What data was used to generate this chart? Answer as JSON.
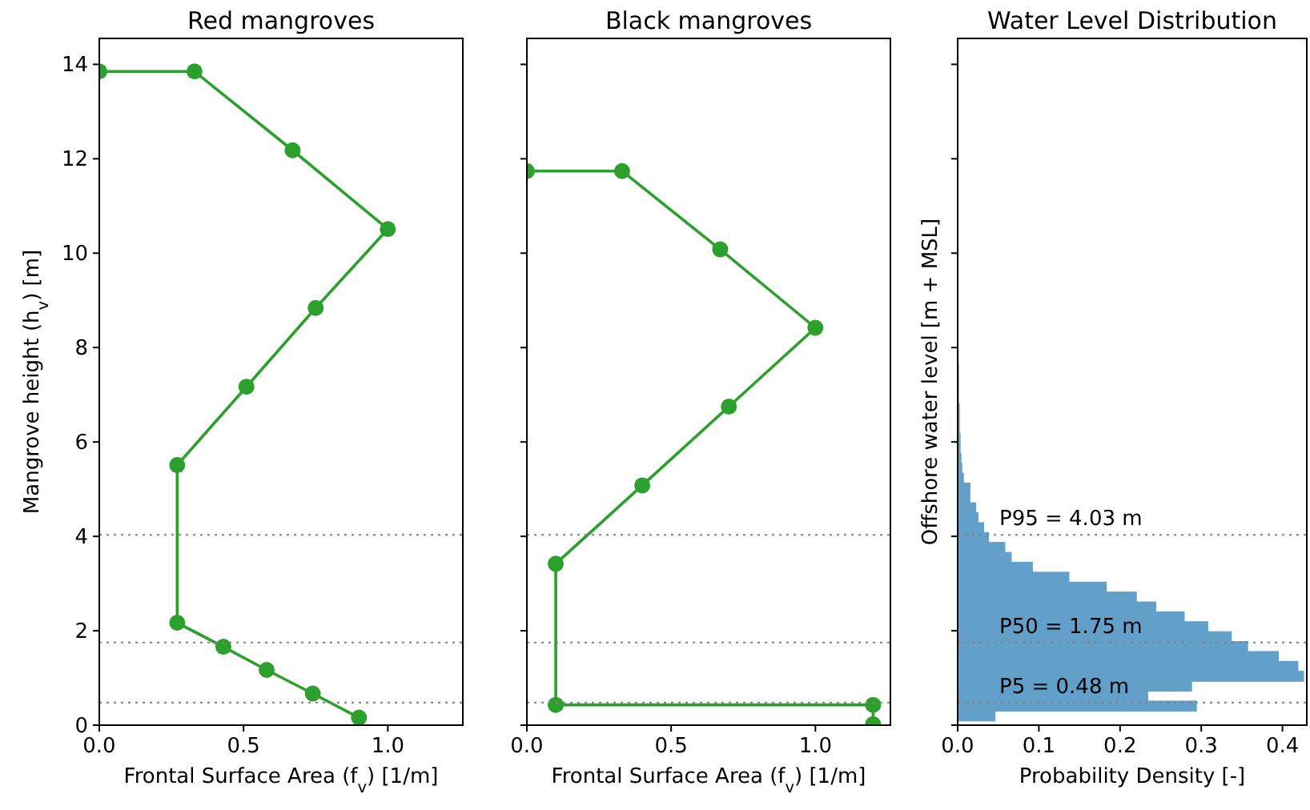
{
  "chart_data": [
    {
      "type": "line",
      "title": "Red mangroves",
      "xlabel": "Frontal Surface Area (f$_{v}$) [1/m]",
      "ylabel": "Mangrove height (h$_{v}$) [m]",
      "marker": "circle",
      "line_style": "solid",
      "xlim": [
        0,
        1.26
      ],
      "xticks": [
        {
          "value": 0,
          "label": "0.0"
        },
        {
          "value": 0.5,
          "label": "0.5"
        },
        {
          "value": 1,
          "label": "1.0"
        }
      ],
      "ylim": [
        0,
        14.55
      ],
      "yticks": [
        0,
        2,
        4,
        6,
        8,
        10,
        12,
        14
      ],
      "series": [
        {
          "color": "#2ca02c",
          "x": [
            0,
            0.33,
            0.67,
            1.0,
            0.75,
            0.51,
            0.27,
            0.27,
            0.43,
            0.58,
            0.74,
            0.9
          ],
          "values": [
            13.85,
            13.85,
            12.18,
            10.51,
            8.84,
            7.17,
            5.51,
            2.17,
            1.66,
            1.17,
            0.67,
            0.16
          ]
        }
      ],
      "ref_lines": [
        {
          "axis": "y",
          "value": 4.03,
          "color": "#808080",
          "line_style": "dotted"
        },
        {
          "axis": "y",
          "value": 1.75,
          "color": "#808080",
          "line_style": "dotted"
        },
        {
          "axis": "y",
          "value": 0.48,
          "color": "#808080",
          "line_style": "dotted"
        }
      ]
    },
    {
      "type": "line",
      "title": "Black mangroves",
      "xlabel": "Frontal Surface Area (f$_{v}$) [1/m]",
      "marker": "circle",
      "line_style": "solid",
      "xlim": [
        0,
        1.26
      ],
      "xticks": [
        {
          "value": 0,
          "label": "0.0"
        },
        {
          "value": 0.5,
          "label": "0.5"
        },
        {
          "value": 1,
          "label": "1.0"
        }
      ],
      "ylim": [
        0,
        14.55
      ],
      "yticks": [
        0,
        2,
        4,
        6,
        8,
        10,
        12,
        14
      ],
      "tick_labels": "x",
      "series": [
        {
          "color": "#2ca02c",
          "x": [
            0,
            0.33,
            0.67,
            1.0,
            0.7,
            0.4,
            0.1,
            0.1,
            1.2,
            1.2
          ],
          "values": [
            11.74,
            11.74,
            10.08,
            8.42,
            6.75,
            5.08,
            3.42,
            0.43,
            0.43,
            0.02
          ]
        }
      ],
      "ref_lines": [
        {
          "axis": "y",
          "value": 4.03,
          "color": "#808080",
          "line_style": "dotted"
        },
        {
          "axis": "y",
          "value": 1.75,
          "color": "#808080",
          "line_style": "dotted"
        },
        {
          "axis": "y",
          "value": 0.48,
          "color": "#808080",
          "line_style": "dotted"
        }
      ]
    },
    {
      "type": "histogram",
      "orientation": "horizontal",
      "title": "Water Level Distribution",
      "xlabel": "Probability Density [-]",
      "ylabel": "Offshore water level [m + MSL]",
      "color": "#62a0ca",
      "xlim": [
        0,
        0.43
      ],
      "xticks": [
        {
          "value": 0,
          "label": "0.0"
        },
        {
          "value": 0.1,
          "label": "0.1"
        },
        {
          "value": 0.2,
          "label": "0.2"
        },
        {
          "value": 0.3,
          "label": "0.3"
        },
        {
          "value": 0.4,
          "label": "0.4"
        }
      ],
      "ylim": [
        0,
        14.55
      ],
      "yticks": [
        0,
        2,
        4,
        6,
        8,
        10,
        12,
        14
      ],
      "tick_labels": "x",
      "bins": [
        0.09,
        0.3,
        0.51,
        0.72,
        0.93,
        1.14,
        1.35,
        1.56,
        1.77,
        1.98,
        2.19,
        2.4,
        2.61,
        2.82,
        3.03,
        3.24,
        3.45,
        3.66,
        3.87,
        4.08,
        4.29,
        4.5,
        4.71,
        4.92,
        5.13,
        5.34,
        5.55,
        5.76,
        5.97,
        6.18,
        6.39,
        6.6,
        6.81,
        7.02,
        7.23,
        7.44,
        7.65
      ],
      "values": [
        0.046,
        0.294,
        0.234,
        0.288,
        0.426,
        0.419,
        0.395,
        0.357,
        0.337,
        0.308,
        0.279,
        0.244,
        0.22,
        0.183,
        0.137,
        0.092,
        0.066,
        0.058,
        0.038,
        0.032,
        0.025,
        0.022,
        0.015,
        0.015,
        0.007,
        0.005,
        0.004,
        0.003,
        0.003,
        0.002,
        0.002,
        0.002,
        0.001,
        0.001,
        0.001,
        0.001
      ],
      "ref_lines": [
        {
          "axis": "y",
          "value": 4.03,
          "label": "P95 = 4.03 m",
          "color": "#808080",
          "line_style": "dotted"
        },
        {
          "axis": "y",
          "value": 1.75,
          "label": "P50 = 1.75 m",
          "color": "#808080",
          "line_style": "dotted"
        },
        {
          "axis": "y",
          "value": 0.48,
          "label": "P5 = 0.48 m",
          "color": "#808080",
          "line_style": "dotted"
        }
      ]
    }
  ]
}
